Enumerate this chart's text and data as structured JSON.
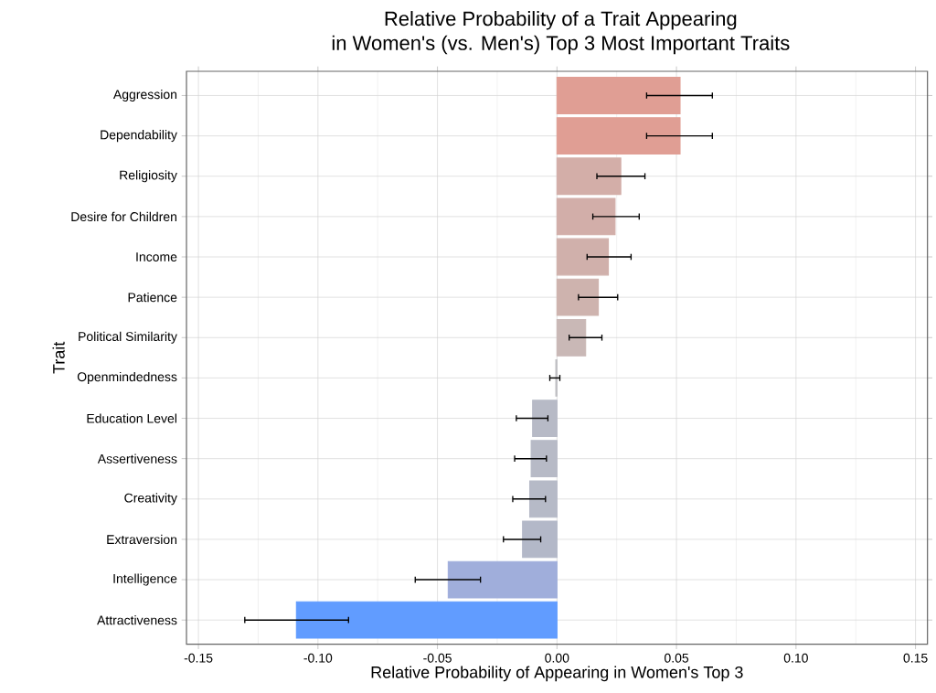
{
  "chart_data": {
    "type": "bar",
    "orientation": "horizontal",
    "title": "Relative Probability of a Trait Appearing",
    "subtitle": "in Women's (vs. Men's) Top 3 Most Important Traits",
    "xlabel": "Relative Probability of Appearing in Women's Top 3",
    "ylabel": "Trait",
    "categories": [
      "Aggression",
      "Dependability",
      "Religiosity",
      "Desire for Children",
      "Income",
      "Patience",
      "Political Similarity",
      "Openmindedness",
      "Education Level",
      "Assertiveness",
      "Creativity",
      "Extraversion",
      "Intelligence",
      "Attractiveness"
    ],
    "values": [
      0.0515,
      0.0515,
      0.0267,
      0.0243,
      0.0215,
      0.0173,
      0.012,
      -0.0005,
      -0.0102,
      -0.0108,
      -0.0114,
      -0.0144,
      -0.0455,
      -0.109
    ],
    "errors": [
      [
        0.0375,
        0.065
      ],
      [
        0.0375,
        0.065
      ],
      [
        0.0167,
        0.0368
      ],
      [
        0.015,
        0.0344
      ],
      [
        0.0126,
        0.031
      ],
      [
        0.009,
        0.0254
      ],
      [
        0.0051,
        0.0188
      ],
      [
        -0.003,
        0.0012
      ],
      [
        -0.017,
        -0.0038
      ],
      [
        -0.0177,
        -0.0044
      ],
      [
        -0.0185,
        -0.0048
      ],
      [
        -0.0224,
        -0.0068
      ],
      [
        -0.0593,
        -0.032
      ],
      [
        -0.1306,
        -0.0872
      ]
    ],
    "colors": [
      "#e09e94",
      "#e09e94",
      "#d3aea8",
      "#d2aea9",
      "#d0b0ab",
      "#ceb3ae",
      "#c9b8b6",
      "#c0c0c4",
      "#b7bac6",
      "#b7bac6",
      "#b6bac7",
      "#b3b8c8",
      "#a0aedb",
      "#619cff"
    ],
    "xlim": [
      -0.155,
      0.155
    ],
    "xticks": [
      {
        "value": -0.15,
        "label": "-0.15"
      },
      {
        "value": -0.1,
        "label": "-0.10"
      },
      {
        "value": -0.05,
        "label": "-0.05"
      },
      {
        "value": 0,
        "label": "0.00"
      },
      {
        "value": 0.05,
        "label": "0.05"
      },
      {
        "value": 0.1,
        "label": "0.10"
      },
      {
        "value": 0.15,
        "label": "0.15"
      }
    ],
    "grid": true
  }
}
